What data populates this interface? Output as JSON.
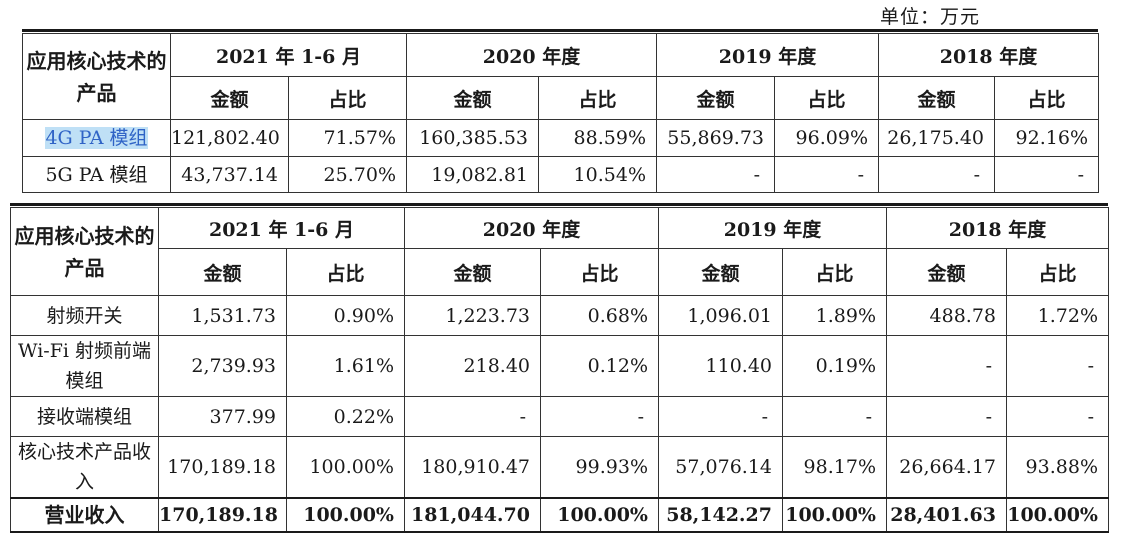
{
  "unit_note": "单位：万元",
  "table1": {
    "stub_header": "应用核心技术的产品",
    "periods": [
      "2021 年 1-6 月",
      "2020 年度",
      "2019 年度",
      "2018 年度"
    ],
    "subheaders": {
      "amount": "金额",
      "share": "占比"
    },
    "rows": [
      {
        "label": "4G PA 模组",
        "cells": [
          "121,802.40",
          "71.57%",
          "160,385.53",
          "88.59%",
          "55,869.73",
          "96.09%",
          "26,175.40",
          "92.16%"
        ]
      },
      {
        "label": "5G PA 模组",
        "cells": [
          "43,737.14",
          "25.70%",
          "19,082.81",
          "10.54%",
          "-",
          "-",
          "-",
          "-"
        ]
      }
    ]
  },
  "table2": {
    "stub_header": "应用核心技术的产品",
    "periods": [
      "2021 年 1-6 月",
      "2020 年度",
      "2019 年度",
      "2018 年度"
    ],
    "subheaders": {
      "amount": "金额",
      "share": "占比"
    },
    "rows": [
      {
        "label": "射频开关",
        "cells": [
          "1,531.73",
          "0.90%",
          "1,223.73",
          "0.68%",
          "1,096.01",
          "1.89%",
          "488.78",
          "1.72%"
        ]
      },
      {
        "label": "Wi-Fi 射频前端模组",
        "cells": [
          "2,739.93",
          "1.61%",
          "218.40",
          "0.12%",
          "110.40",
          "0.19%",
          "-",
          "-"
        ]
      },
      {
        "label": "接收端模组",
        "cells": [
          "377.99",
          "0.22%",
          "-",
          "-",
          "-",
          "-",
          "-",
          "-"
        ]
      },
      {
        "label": "核心技术产品收入",
        "cells": [
          "170,189.18",
          "100.00%",
          "180,910.47",
          "99.93%",
          "57,076.14",
          "98.17%",
          "26,664.17",
          "93.88%"
        ]
      },
      {
        "label": "营业收入",
        "cells": [
          "170,189.18",
          "100.00%",
          "181,044.70",
          "100.00%",
          "58,142.27",
          "100.00%",
          "28,401.63",
          "100.00%"
        ]
      }
    ]
  }
}
